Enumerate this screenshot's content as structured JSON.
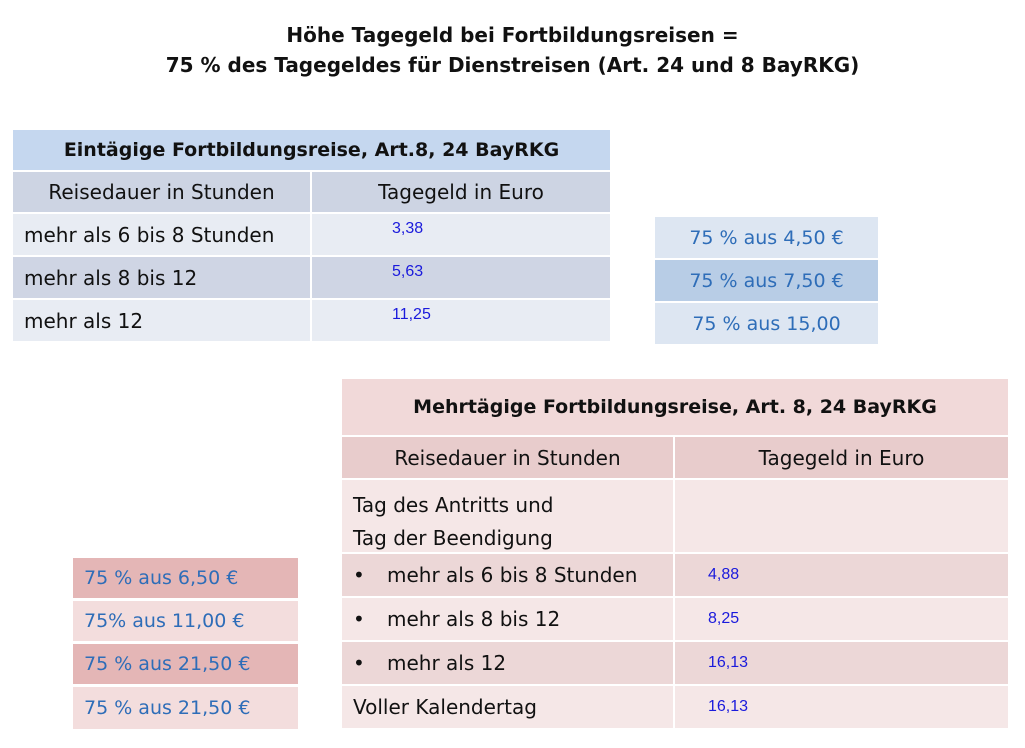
{
  "title": {
    "line1": "Höhe Tagegeld bei Fortbildungsreisen =",
    "line2": "75 % des Tagegeldes für Dienstreisen (Art. 24 und 8 BayRKG)"
  },
  "table1": {
    "header": "Eintägige Fortbildungsreise, Art.8, 24 BayRKG",
    "col1": "Reisedauer in Stunden",
    "col2": "Tagegeld in Euro",
    "rows": [
      {
        "label": "mehr als 6 bis 8 Stunden",
        "value": "3,38"
      },
      {
        "label": "mehr als 8 bis 12",
        "value": "5,63"
      },
      {
        "label": "mehr als 12",
        "value": "11,25"
      }
    ]
  },
  "notes1": [
    "75 % aus 4,50 €",
    "75 % aus 7,50 €",
    "75 % aus 15,00"
  ],
  "table2": {
    "header": "Mehrtägige Fortbildungsreise, Art. 8, 24 BayRKG",
    "col1": "Reisedauer in Stunden",
    "col2": "Tagegeld in Euro",
    "first_row": {
      "line1": "Tag des Antritts und",
      "line2": "Tag der Beendigung"
    },
    "bullet": "•",
    "rows": [
      {
        "label": "mehr als 6 bis 8 Stunden",
        "value": "4,88"
      },
      {
        "label": "mehr als 8 bis 12",
        "value": "8,25"
      },
      {
        "label": "mehr als 12",
        "value": "16,13"
      }
    ],
    "last_row": {
      "label": "Voller Kalendertag",
      "value": "16,13"
    }
  },
  "notes2": [
    "75 % aus 6,50 €",
    "75% aus 11,00 €",
    "75 % aus 21,50 €",
    "75 % aus 21,50 €"
  ]
}
